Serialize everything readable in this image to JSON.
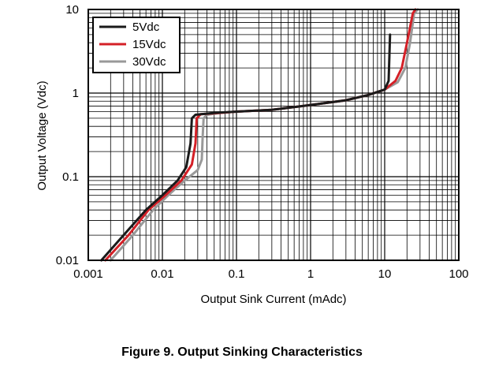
{
  "caption": "Figure 9. Output Sinking Characteristics",
  "chart_data": {
    "type": "line",
    "title": "",
    "xlabel": "Output Sink Current (mAdc)",
    "ylabel": "Output Voltage (Vdc)",
    "x_scale": "log",
    "y_scale": "log",
    "xlim": [
      0.001,
      100
    ],
    "ylim": [
      0.01,
      10
    ],
    "grid": true,
    "legend_position": "top-left",
    "x_ticks": [
      "0.001",
      "0.01",
      "0.1",
      "1",
      "10",
      "100"
    ],
    "y_ticks": [
      "0.01",
      "0.1",
      "1",
      "10"
    ],
    "series": [
      {
        "name": "5Vdc",
        "color": "#1a1a1a",
        "points": [
          [
            0.0015,
            0.01
          ],
          [
            0.003,
            0.02
          ],
          [
            0.006,
            0.04
          ],
          [
            0.01,
            0.06
          ],
          [
            0.016,
            0.09
          ],
          [
            0.021,
            0.13
          ],
          [
            0.024,
            0.25
          ],
          [
            0.025,
            0.5
          ],
          [
            0.028,
            0.55
          ],
          [
            0.05,
            0.58
          ],
          [
            0.1,
            0.6
          ],
          [
            0.3,
            0.63
          ],
          [
            1,
            0.72
          ],
          [
            3,
            0.82
          ],
          [
            6,
            0.95
          ],
          [
            10,
            1.1
          ],
          [
            11.3,
            1.4
          ],
          [
            11.8,
            5.0
          ]
        ]
      },
      {
        "name": "15Vdc",
        "color": "#d42027",
        "points": [
          [
            0.0017,
            0.01
          ],
          [
            0.0035,
            0.02
          ],
          [
            0.0065,
            0.04
          ],
          [
            0.011,
            0.06
          ],
          [
            0.018,
            0.09
          ],
          [
            0.025,
            0.14
          ],
          [
            0.028,
            0.25
          ],
          [
            0.029,
            0.5
          ],
          [
            0.033,
            0.56
          ],
          [
            0.06,
            0.58
          ],
          [
            0.1,
            0.6
          ],
          [
            0.3,
            0.63
          ],
          [
            1,
            0.72
          ],
          [
            3,
            0.82
          ],
          [
            6,
            0.95
          ],
          [
            10,
            1.1
          ],
          [
            14,
            1.4
          ],
          [
            17,
            2.0
          ],
          [
            20,
            4.0
          ],
          [
            24,
            9.0
          ],
          [
            26,
            10.0
          ]
        ]
      },
      {
        "name": "30Vdc",
        "color": "#999999",
        "points": [
          [
            0.002,
            0.01
          ],
          [
            0.004,
            0.02
          ],
          [
            0.0075,
            0.04
          ],
          [
            0.012,
            0.06
          ],
          [
            0.02,
            0.09
          ],
          [
            0.03,
            0.12
          ],
          [
            0.034,
            0.16
          ],
          [
            0.035,
            0.3
          ],
          [
            0.036,
            0.5
          ],
          [
            0.04,
            0.55
          ],
          [
            0.06,
            0.58
          ],
          [
            0.1,
            0.6
          ],
          [
            0.3,
            0.63
          ],
          [
            1,
            0.72
          ],
          [
            3,
            0.82
          ],
          [
            6,
            0.95
          ],
          [
            10,
            1.1
          ],
          [
            15,
            1.35
          ],
          [
            19,
            2.0
          ],
          [
            22,
            4.0
          ],
          [
            25,
            9.0
          ],
          [
            28,
            10.0
          ]
        ]
      }
    ]
  }
}
